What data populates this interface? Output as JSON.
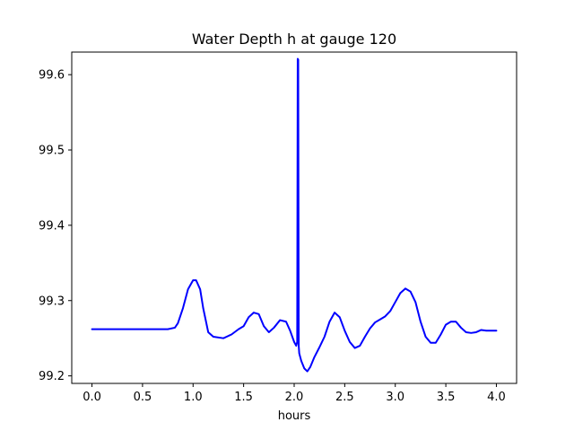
{
  "chart_data": {
    "type": "line",
    "title": "Water Depth h at gauge 120",
    "xlabel": "hours",
    "ylabel": "",
    "xlim": [
      -0.2,
      4.2
    ],
    "ylim": [
      99.19,
      99.63
    ],
    "xticks": [
      0.0,
      0.5,
      1.0,
      1.5,
      2.0,
      2.5,
      3.0,
      3.5,
      4.0
    ],
    "xtick_labels": [
      "0.0",
      "0.5",
      "1.0",
      "1.5",
      "2.0",
      "2.5",
      "3.0",
      "3.5",
      "4.0"
    ],
    "yticks": [
      99.2,
      99.3,
      99.4,
      99.5,
      99.6
    ],
    "ytick_labels": [
      "99.2",
      "99.3",
      "99.4",
      "99.5",
      "99.6"
    ],
    "grid": false,
    "series": [
      {
        "name": "h",
        "color": "#0000ff",
        "x": [
          0.0,
          0.3,
          0.6,
          0.75,
          0.82,
          0.85,
          0.9,
          0.95,
          1.0,
          1.03,
          1.07,
          1.1,
          1.15,
          1.2,
          1.3,
          1.38,
          1.45,
          1.5,
          1.55,
          1.6,
          1.65,
          1.7,
          1.75,
          1.8,
          1.86,
          1.92,
          1.96,
          2.0,
          2.02,
          2.03,
          2.035,
          2.04,
          2.045,
          2.05,
          2.07,
          2.1,
          2.13,
          2.16,
          2.2,
          2.25,
          2.3,
          2.35,
          2.4,
          2.45,
          2.5,
          2.55,
          2.6,
          2.65,
          2.7,
          2.75,
          2.8,
          2.85,
          2.9,
          2.95,
          3.0,
          3.05,
          3.1,
          3.15,
          3.2,
          3.25,
          3.3,
          3.35,
          3.4,
          3.45,
          3.5,
          3.55,
          3.6,
          3.65,
          3.7,
          3.75,
          3.8,
          3.85,
          3.9,
          3.95,
          4.0
        ],
        "values": [
          99.262,
          99.262,
          99.262,
          99.262,
          99.264,
          99.27,
          99.29,
          99.315,
          99.327,
          99.327,
          99.315,
          99.29,
          99.258,
          99.252,
          99.25,
          99.255,
          99.262,
          99.266,
          99.278,
          99.284,
          99.282,
          99.266,
          99.258,
          99.264,
          99.274,
          99.272,
          99.26,
          99.245,
          99.24,
          99.245,
          99.621,
          99.62,
          99.24,
          99.23,
          99.22,
          99.21,
          99.206,
          99.212,
          99.225,
          99.238,
          99.252,
          99.272,
          99.284,
          99.278,
          99.26,
          99.245,
          99.237,
          99.24,
          99.252,
          99.263,
          99.271,
          99.275,
          99.279,
          99.286,
          99.298,
          99.31,
          99.316,
          99.312,
          99.298,
          99.272,
          99.252,
          99.244,
          99.244,
          99.255,
          99.268,
          99.272,
          99.272,
          99.264,
          99.258,
          99.257,
          99.258,
          99.261,
          99.26,
          99.26,
          99.26
        ]
      }
    ]
  }
}
